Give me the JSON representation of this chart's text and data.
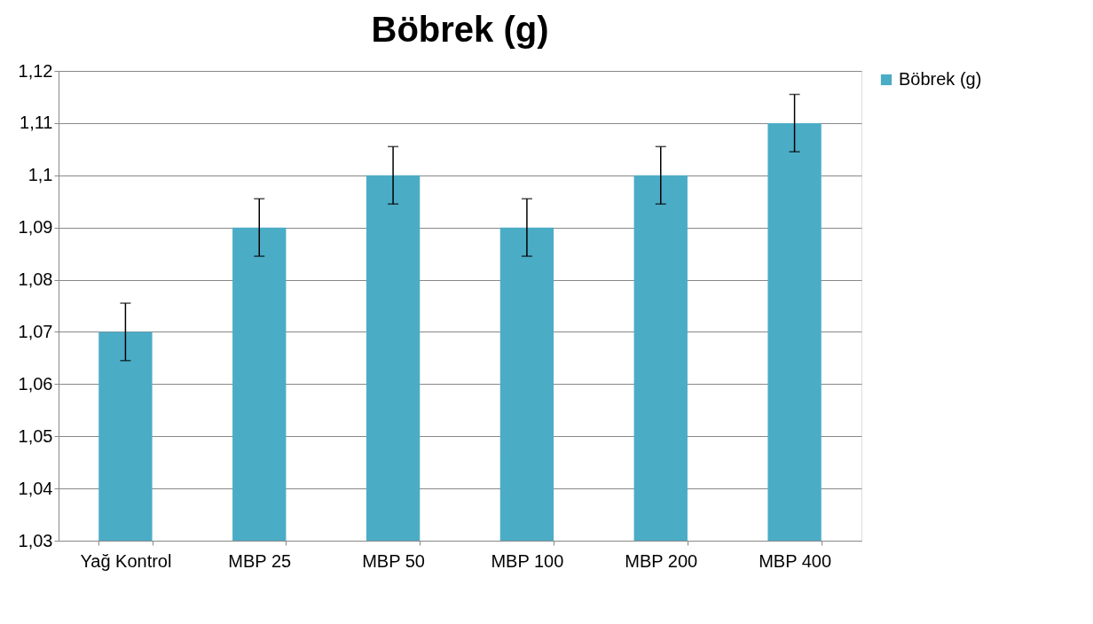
{
  "chart_data": {
    "type": "bar",
    "title": "Böbrek (g)",
    "categories": [
      "Yağ Kontrol",
      "MBP 25",
      "MBP 50",
      "MBP 100",
      "MBP 200",
      "MBP 400"
    ],
    "series": [
      {
        "name": "Böbrek (g)",
        "color": "#4bacc6",
        "values": [
          1.07,
          1.09,
          1.1,
          1.09,
          1.1,
          1.11
        ],
        "errors": [
          0.0055,
          0.0055,
          0.0055,
          0.0055,
          0.0055,
          0.0055
        ]
      }
    ],
    "ylim": [
      1.03,
      1.12
    ],
    "yticks": [
      {
        "value": 1.03,
        "label": "1,03"
      },
      {
        "value": 1.04,
        "label": "1,04"
      },
      {
        "value": 1.05,
        "label": "1,05"
      },
      {
        "value": 1.06,
        "label": "1,06"
      },
      {
        "value": 1.07,
        "label": "1,07"
      },
      {
        "value": 1.08,
        "label": "1,08"
      },
      {
        "value": 1.09,
        "label": "1,09"
      },
      {
        "value": 1.1,
        "label": "1,1"
      },
      {
        "value": 1.11,
        "label": "1,11"
      },
      {
        "value": 1.12,
        "label": "1,12"
      }
    ],
    "grid": "y",
    "legend": "right"
  }
}
